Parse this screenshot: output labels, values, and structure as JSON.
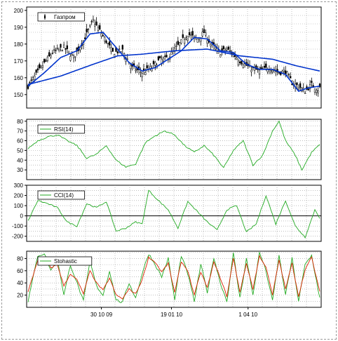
{
  "chart_data": [
    {
      "type": "candlestick",
      "legend": "Газпром",
      "ylim": [
        142,
        202
      ],
      "yticks": [
        150,
        160,
        170,
        180,
        190,
        200
      ],
      "grid": true,
      "n_points": 180,
      "price_anchors": [
        [
          0,
          155
        ],
        [
          8,
          166
        ],
        [
          15,
          175
        ],
        [
          22,
          178
        ],
        [
          28,
          172
        ],
        [
          34,
          182
        ],
        [
          40,
          194
        ],
        [
          46,
          185
        ],
        [
          52,
          175
        ],
        [
          58,
          176
        ],
        [
          64,
          166
        ],
        [
          70,
          163
        ],
        [
          76,
          166
        ],
        [
          80,
          170
        ],
        [
          86,
          172
        ],
        [
          92,
          179
        ],
        [
          98,
          186
        ],
        [
          104,
          183
        ],
        [
          108,
          187
        ],
        [
          112,
          180
        ],
        [
          118,
          175
        ],
        [
          122,
          177
        ],
        [
          126,
          174
        ],
        [
          130,
          170
        ],
        [
          136,
          166
        ],
        [
          142,
          164
        ],
        [
          148,
          166
        ],
        [
          154,
          163
        ],
        [
          158,
          164
        ],
        [
          162,
          157
        ],
        [
          166,
          155
        ],
        [
          170,
          152
        ],
        [
          174,
          156
        ],
        [
          178,
          153
        ],
        [
          179,
          154
        ]
      ],
      "series": [
        {
          "name": "",
          "color": "#0033cc",
          "kind": "long-moving-average",
          "anchors": [
            [
              0,
              156
            ],
            [
              20,
              161
            ],
            [
              40,
              168
            ],
            [
              55,
              173
            ],
            [
              70,
              174
            ],
            [
              90,
              176
            ],
            [
              110,
              177
            ],
            [
              130,
              173
            ],
            [
              150,
              171
            ],
            [
              165,
              167
            ],
            [
              179,
              164
            ]
          ]
        },
        {
          "name": "",
          "color": "#0033cc",
          "kind": "short-moving-average",
          "anchors": [
            [
              0,
              155
            ],
            [
              10,
              163
            ],
            [
              20,
              172
            ],
            [
              30,
              176
            ],
            [
              38,
              186
            ],
            [
              46,
              187
            ],
            [
              54,
              178
            ],
            [
              62,
              169
            ],
            [
              70,
              164
            ],
            [
              78,
              166
            ],
            [
              86,
              171
            ],
            [
              94,
              176
            ],
            [
              102,
              184
            ],
            [
              110,
              183
            ],
            [
              118,
              176
            ],
            [
              126,
              175
            ],
            [
              134,
              168
            ],
            [
              142,
              165
            ],
            [
              150,
              165
            ],
            [
              158,
              162
            ],
            [
              166,
              152
            ],
            [
              172,
              154
            ],
            [
              179,
              155
            ]
          ]
        }
      ],
      "x_ticks": []
    },
    {
      "type": "line",
      "legend": "RSI(14)",
      "color": "#22aa22",
      "ylim": [
        20,
        82
      ],
      "yticks": [
        30,
        40,
        50,
        60,
        70,
        80
      ],
      "grid": true,
      "anchors": [
        [
          0,
          52
        ],
        [
          6,
          60
        ],
        [
          12,
          64
        ],
        [
          18,
          66
        ],
        [
          24,
          60
        ],
        [
          30,
          55
        ],
        [
          36,
          42
        ],
        [
          42,
          46
        ],
        [
          48,
          55
        ],
        [
          54,
          40
        ],
        [
          60,
          33
        ],
        [
          66,
          36
        ],
        [
          72,
          58
        ],
        [
          78,
          65
        ],
        [
          84,
          70
        ],
        [
          90,
          66
        ],
        [
          96,
          55
        ],
        [
          102,
          48
        ],
        [
          108,
          55
        ],
        [
          114,
          45
        ],
        [
          120,
          32
        ],
        [
          126,
          50
        ],
        [
          132,
          60
        ],
        [
          138,
          35
        ],
        [
          144,
          45
        ],
        [
          150,
          70
        ],
        [
          154,
          80
        ],
        [
          158,
          60
        ],
        [
          164,
          45
        ],
        [
          168,
          30
        ],
        [
          174,
          48
        ],
        [
          179,
          56
        ]
      ],
      "x_ticks": []
    },
    {
      "type": "line",
      "legend": "CCI(14)",
      "color": "#22aa22",
      "ylim": [
        -250,
        300
      ],
      "yticks": [
        -200,
        -100,
        0,
        100,
        200,
        300
      ],
      "zero_line": true,
      "grid": true,
      "anchors": [
        [
          0,
          -50
        ],
        [
          6,
          150
        ],
        [
          12,
          120
        ],
        [
          18,
          80
        ],
        [
          24,
          -60
        ],
        [
          30,
          -100
        ],
        [
          36,
          120
        ],
        [
          42,
          80
        ],
        [
          48,
          140
        ],
        [
          54,
          -150
        ],
        [
          60,
          -120
        ],
        [
          66,
          -60
        ],
        [
          70,
          -80
        ],
        [
          74,
          250
        ],
        [
          80,
          150
        ],
        [
          86,
          60
        ],
        [
          92,
          -120
        ],
        [
          98,
          140
        ],
        [
          104,
          40
        ],
        [
          110,
          -60
        ],
        [
          116,
          -140
        ],
        [
          122,
          60
        ],
        [
          128,
          100
        ],
        [
          134,
          -160
        ],
        [
          140,
          -80
        ],
        [
          146,
          200
        ],
        [
          152,
          -80
        ],
        [
          158,
          150
        ],
        [
          164,
          -100
        ],
        [
          170,
          -210
        ],
        [
          176,
          60
        ],
        [
          179,
          -20
        ]
      ],
      "x_ticks": []
    },
    {
      "type": "line",
      "legend": "Stohastic",
      "ylim": [
        0,
        92
      ],
      "yticks": [
        20,
        40,
        60,
        80
      ],
      "grid": true,
      "series": [
        {
          "name": "",
          "color": "#22aa22",
          "kind": "fast",
          "anchors": [
            [
              0,
              10
            ],
            [
              6,
              85
            ],
            [
              10,
              88
            ],
            [
              14,
              60
            ],
            [
              18,
              80
            ],
            [
              22,
              20
            ],
            [
              26,
              70
            ],
            [
              30,
              40
            ],
            [
              34,
              10
            ],
            [
              38,
              75
            ],
            [
              42,
              35
            ],
            [
              46,
              20
            ],
            [
              50,
              60
            ],
            [
              54,
              12
            ],
            [
              58,
              8
            ],
            [
              62,
              40
            ],
            [
              66,
              15
            ],
            [
              70,
              55
            ],
            [
              74,
              88
            ],
            [
              78,
              70
            ],
            [
              82,
              50
            ],
            [
              86,
              80
            ],
            [
              90,
              12
            ],
            [
              94,
              85
            ],
            [
              98,
              55
            ],
            [
              102,
              10
            ],
            [
              106,
              70
            ],
            [
              110,
              25
            ],
            [
              114,
              82
            ],
            [
              118,
              40
            ],
            [
              122,
              10
            ],
            [
              126,
              88
            ],
            [
              130,
              15
            ],
            [
              134,
              80
            ],
            [
              138,
              20
            ],
            [
              142,
              90
            ],
            [
              146,
              60
            ],
            [
              150,
              10
            ],
            [
              154,
              85
            ],
            [
              158,
              20
            ],
            [
              162,
              80
            ],
            [
              166,
              10
            ],
            [
              170,
              70
            ],
            [
              174,
              85
            ],
            [
              179,
              15
            ]
          ]
        },
        {
          "name": "",
          "color": "#dd2200",
          "kind": "slow",
          "anchors": [
            [
              0,
              25
            ],
            [
              6,
              78
            ],
            [
              10,
              82
            ],
            [
              14,
              65
            ],
            [
              18,
              70
            ],
            [
              22,
              35
            ],
            [
              26,
              55
            ],
            [
              30,
              45
            ],
            [
              34,
              22
            ],
            [
              38,
              60
            ],
            [
              42,
              40
            ],
            [
              46,
              28
            ],
            [
              50,
              48
            ],
            [
              54,
              20
            ],
            [
              58,
              14
            ],
            [
              62,
              30
            ],
            [
              66,
              22
            ],
            [
              70,
              45
            ],
            [
              74,
              82
            ],
            [
              78,
              74
            ],
            [
              82,
              58
            ],
            [
              86,
              72
            ],
            [
              90,
              24
            ],
            [
              94,
              75
            ],
            [
              98,
              60
            ],
            [
              102,
              20
            ],
            [
              106,
              58
            ],
            [
              110,
              32
            ],
            [
              114,
              74
            ],
            [
              118,
              48
            ],
            [
              122,
              18
            ],
            [
              126,
              80
            ],
            [
              130,
              25
            ],
            [
              134,
              72
            ],
            [
              138,
              30
            ],
            [
              142,
              84
            ],
            [
              146,
              66
            ],
            [
              150,
              20
            ],
            [
              154,
              78
            ],
            [
              158,
              30
            ],
            [
              162,
              72
            ],
            [
              166,
              18
            ],
            [
              170,
              62
            ],
            [
              174,
              82
            ],
            [
              179,
              25
            ]
          ]
        }
      ],
      "x_ticks": [
        {
          "index": 45,
          "label": "30 10 09"
        },
        {
          "index": 88,
          "label": "19 01 10"
        },
        {
          "index": 135,
          "label": "1 04 10"
        }
      ]
    }
  ]
}
